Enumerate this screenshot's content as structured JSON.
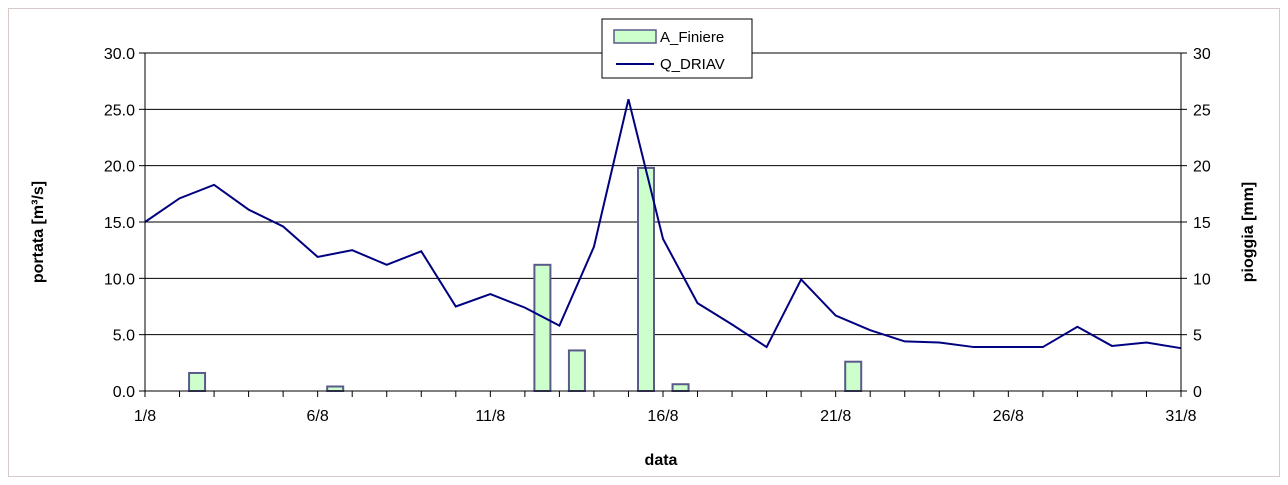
{
  "chart_data": {
    "type": "bar+line",
    "xlabel": "data",
    "ylabel_left": "portata [m³/s]",
    "ylabel_right": "pioggia [mm]",
    "ylim_left": [
      0,
      30
    ],
    "ylim_right": [
      0,
      30
    ],
    "yticks_left": [
      "0.0",
      "5.0",
      "10.0",
      "15.0",
      "20.0",
      "25.0",
      "30.0"
    ],
    "yticks_right": [
      "0",
      "5",
      "10",
      "15",
      "20",
      "25",
      "30"
    ],
    "x_tick_labels": [
      "1/8",
      "6/8",
      "11/8",
      "16/8",
      "21/8",
      "26/8",
      "31/8"
    ],
    "grid": "horizontal",
    "legend_position": "top-center",
    "series": [
      {
        "name": "A_Finiere",
        "kind": "bar",
        "axis": "right",
        "color": "#ccffcc",
        "edge_color": "#5a5a8a",
        "days": [
          3,
          7,
          13,
          14,
          16,
          17,
          22
        ],
        "values": [
          1.6,
          0.4,
          11.2,
          3.6,
          19.8,
          0.6,
          2.6
        ]
      },
      {
        "name": "Q_DRIAV",
        "kind": "line",
        "axis": "left",
        "color": "#000080",
        "days": [
          1,
          2,
          3,
          4,
          5,
          6,
          7,
          8,
          9,
          10,
          11,
          12,
          13,
          14,
          15,
          16,
          17,
          18,
          19,
          20,
          21,
          22,
          23,
          24,
          25,
          26,
          27,
          28,
          29,
          30,
          31
        ],
        "values": [
          15.0,
          17.1,
          18.3,
          16.1,
          14.6,
          11.9,
          12.5,
          11.2,
          12.4,
          7.5,
          8.6,
          7.4,
          5.8,
          12.8,
          25.9,
          13.5,
          7.8,
          5.9,
          3.9,
          9.9,
          6.7,
          5.4,
          4.4,
          4.3,
          3.9,
          3.9,
          3.9,
          5.7,
          4.0,
          4.3,
          3.8
        ]
      }
    ]
  }
}
